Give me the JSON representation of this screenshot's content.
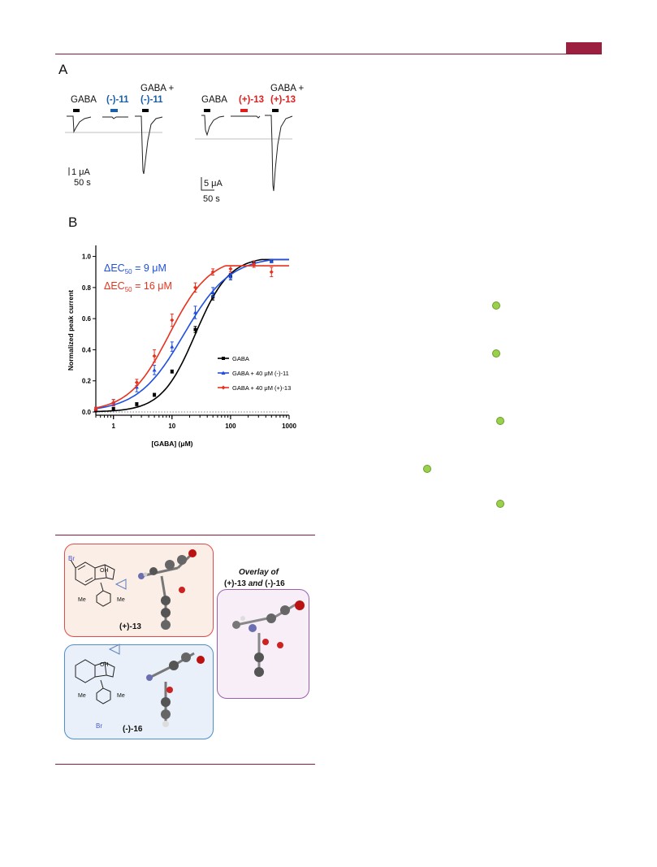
{
  "header": {
    "accent": "#9c1f3f"
  },
  "panel_a": {
    "letter": "A",
    "left": {
      "gaba": "GABA",
      "drug": "(-)-11",
      "combo_line1": "GABA +",
      "combo_line2": "(-)-11",
      "scale_y": "1 μA",
      "scale_x": "50 s"
    },
    "right": {
      "gaba": "GABA",
      "drug": "(+)-13",
      "combo_line1": "GABA +",
      "combo_line2": "(+)-13",
      "scale_y": "5 μA",
      "scale_x": "50 s"
    }
  },
  "panel_b": {
    "letter": "B"
  },
  "chart_data": {
    "type": "line",
    "xscale": "log",
    "xlabel": "[GABA] (μM)",
    "ylabel": "Normalized peak current",
    "xlim": [
      0.5,
      1000
    ],
    "ylim": [
      0,
      1.05
    ],
    "xticks": [
      "1",
      "10",
      "100",
      "1000"
    ],
    "yticks": [
      "0.0",
      "0.2",
      "0.4",
      "0.6",
      "0.8",
      "1.0"
    ],
    "annotations": [
      {
        "prefix": "ΔEC",
        "sub": "50",
        "suffix": " = 9 μM",
        "color": "#1f4fe0"
      },
      {
        "prefix": "ΔEC",
        "sub": "50",
        "suffix": " = 16 μM",
        "color": "#e8321e"
      }
    ],
    "legend_position": "right",
    "series": [
      {
        "name": "GABA",
        "color": "#000000",
        "marker": "square",
        "x": [
          0.5,
          1,
          2.5,
          5,
          10,
          25,
          50,
          100,
          250,
          500
        ],
        "y": [
          0.01,
          0.02,
          0.05,
          0.11,
          0.26,
          0.53,
          0.74,
          0.87,
          0.96,
          0.97
        ],
        "err": [
          0.01,
          0.01,
          0.01,
          0.01,
          0.01,
          0.02,
          0.02,
          0.02,
          0.01,
          0.01
        ],
        "ec50": 25,
        "hill": 1.5
      },
      {
        "name": "GABA + 40 μM (-)-11",
        "color": "#1f4fe0",
        "marker": "triangle",
        "x": [
          0.5,
          1,
          2.5,
          5,
          10,
          25,
          50,
          100,
          250,
          500
        ],
        "y": [
          0.02,
          0.06,
          0.16,
          0.27,
          0.42,
          0.64,
          0.77,
          0.87,
          0.95,
          0.97
        ],
        "err": [
          0.01,
          0.02,
          0.03,
          0.03,
          0.03,
          0.04,
          0.03,
          0.02,
          0.02,
          0.01
        ],
        "ec50": 16,
        "hill": 1.1
      },
      {
        "name": "GABA + 40 μM (+)-13",
        "color": "#e8321e",
        "marker": "diamond",
        "x": [
          0.5,
          1,
          2.5,
          5,
          10,
          25,
          50,
          100,
          250,
          500
        ],
        "y": [
          0.02,
          0.06,
          0.19,
          0.36,
          0.59,
          0.8,
          0.9,
          0.92,
          0.95,
          0.9
        ],
        "err": [
          0.01,
          0.02,
          0.02,
          0.04,
          0.04,
          0.03,
          0.02,
          0.02,
          0.02,
          0.03
        ],
        "ec50": 9,
        "hill": 1.25
      }
    ]
  },
  "figure2": {
    "compound_a": "(+)-13",
    "compound_b": "(-)-16",
    "overlay_line1": "Overlay of",
    "overlay_line2a": "(+)-13",
    "overlay_line2b": " and ",
    "overlay_line2c": "(-)-16",
    "atoms": {
      "br": "Br",
      "oh": "OH",
      "me": "Me",
      "n": "N"
    }
  }
}
